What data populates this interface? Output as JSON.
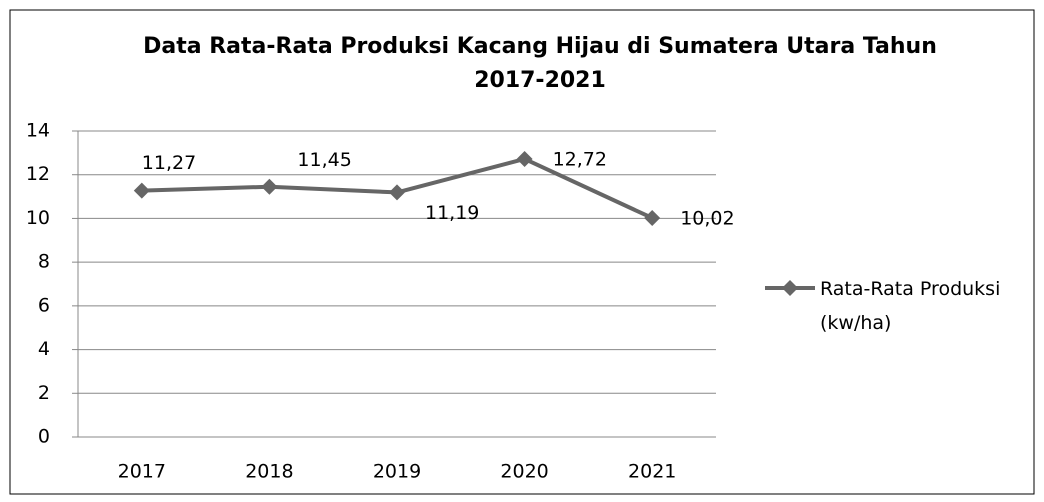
{
  "chart_data": {
    "type": "line",
    "title": "Data Rata-Rata Produksi Kacang Hijau di Sumatera Utara Tahun 2017-2021",
    "categories": [
      "2017",
      "2018",
      "2019",
      "2020",
      "2021"
    ],
    "series": [
      {
        "name": "Rata-Rata Produksi (kw/ha)",
        "color": "#666666",
        "values": [
          11.27,
          11.45,
          11.19,
          12.72,
          10.02
        ],
        "value_labels": [
          "11,27",
          "11,45",
          "11,19",
          "12,72",
          "10,02"
        ]
      }
    ],
    "ylim": [
      0,
      14
    ],
    "yticks": [
      0,
      2,
      4,
      6,
      8,
      10,
      12,
      14
    ],
    "grid": true,
    "legend": "right"
  }
}
